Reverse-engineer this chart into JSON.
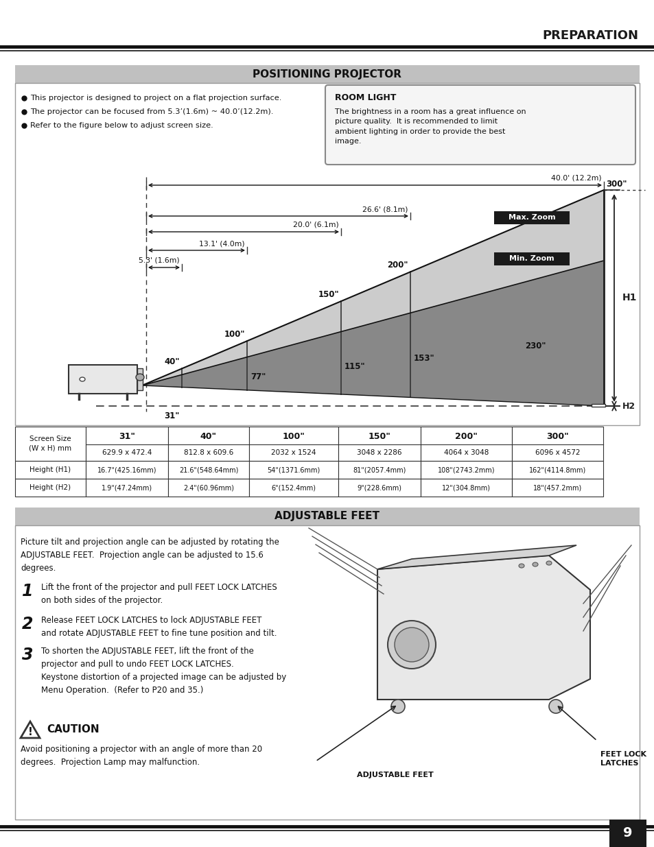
{
  "title_header": "PREPARATION",
  "section1_title": "POSITIONING PROJECTOR",
  "section2_title": "ADJUSTABLE FEET",
  "bullet_points": [
    "This projector is designed to project on a flat projection surface.",
    "The projector can be focused from 5.3’(1.6m) ~ 40.0’(12.2m).",
    "Refer to the figure below to adjust screen size."
  ],
  "room_light_title": "ROOM LIGHT",
  "room_light_text": "The brightness in a room has a great influence on\npicture quality.  It is recommended to limit\nambient lighting in order to provide the best\nimage.",
  "distances": [
    "5.3' (1.6m)",
    "13.1' (4.0m)",
    "20.0' (6.1m)",
    "26.6' (8.1m)",
    "40.0' (12.2m)"
  ],
  "max_zoom_label": "Max. Zoom",
  "min_zoom_label": "Min. Zoom",
  "h1_label": "H1",
  "h2_label": "H2",
  "table_headers": [
    "Screen Size\n(W x H) mm",
    "31\"",
    "40\"",
    "100\"",
    "150\"",
    "200\"",
    "300\""
  ],
  "table_wxh": [
    "629.9 x 472.4",
    "812.8 x 609.6",
    "2032 x 1524",
    "3048 x 2286",
    "4064 x 3048",
    "6096 x 4572"
  ],
  "table_h1_label": "Height (H1)",
  "table_h1": [
    "16.7\"(425.16mm)",
    "21.6\"(548.64mm)",
    "54\"(1371.6mm)",
    "81\"(2057.4mm)",
    "108\"(2743.2mm)",
    "162\"(4114.8mm)"
  ],
  "table_h2_label": "Height (H2)",
  "table_h2": [
    "1.9\"(47.24mm)",
    "2.4\"(60.96mm)",
    "6\"(152.4mm)",
    "9\"(228.6mm)",
    "12\"(304.8mm)",
    "18\"(457.2mm)"
  ],
  "adj_feet_text1": "Picture tilt and projection angle can be adjusted by rotating the\nADJUSTABLE FEET.  Projection angle can be adjusted to 15.6\ndegrees.",
  "step1": "Lift the front of the projector and pull FEET LOCK LATCHES\non both sides of the projector.",
  "step2": "Release FEET LOCK LATCHES to lock ADJUSTABLE FEET\nand rotate ADJUSTABLE FEET to fine tune position and tilt.",
  "step3": "To shorten the ADJUSTABLE FEET, lift the front of the\nprojector and pull to undo FEET LOCK LATCHES.\nKeystone distortion of a projected image can be adjusted by\nMenu Operation.  (Refer to P20 and 35.)",
  "caution_title": "CAUTION",
  "caution_text": "Avoid positioning a projector with an angle of more than 20\ndegrees.  Projection Lamp may malfunction.",
  "adj_feet_caption": "ADJUSTABLE FEET",
  "feet_lock_caption": "FEET LOCK\nLATCHES",
  "page_number": "9",
  "bg_color": "#ffffff",
  "section_bg": "#c0c0c0",
  "diagram_light_gray": "#cccccc",
  "diagram_mid_gray": "#b0b0b0",
  "diagram_dark_gray": "#888888",
  "diagram_darkest": "#606060"
}
